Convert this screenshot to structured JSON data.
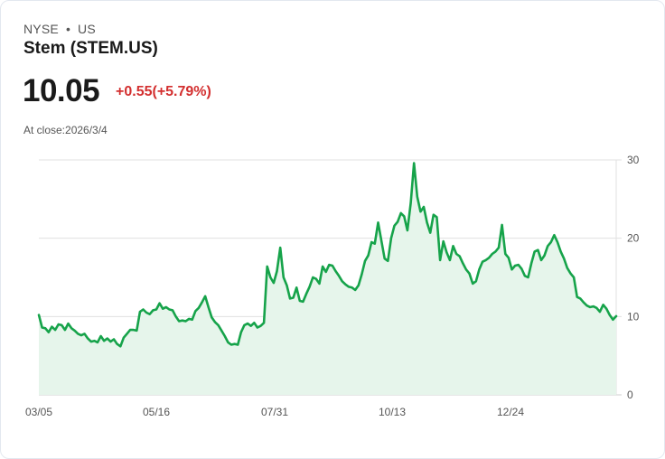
{
  "header": {
    "exchange": "NYSE",
    "separator": "•",
    "region": "US",
    "title": "Stem (STEM.US)",
    "price": "10.05",
    "change": "+0.55(+5.79%)",
    "close_label": "At close:2026/3/4"
  },
  "colors": {
    "line": "#16a34a",
    "fill": "#e6f5eb",
    "change": "#d32f2f",
    "grid": "#e0e0e0"
  },
  "chart_data": {
    "type": "area",
    "title": "Stem (STEM.US)",
    "xlabel": "",
    "ylabel": "",
    "ylim": [
      0,
      30
    ],
    "yticks": [
      0,
      10,
      20,
      30
    ],
    "xtick_labels": [
      "03/05",
      "05/16",
      "07/31",
      "10/13",
      "12/24"
    ],
    "grid": true,
    "y_axis_position": "right",
    "values": [
      10.2,
      8.6,
      8.5,
      8.0,
      8.7,
      8.3,
      9.0,
      8.9,
      8.3,
      9.1,
      8.5,
      8.2,
      7.8,
      7.6,
      7.8,
      7.2,
      6.8,
      6.9,
      6.7,
      7.5,
      6.9,
      7.2,
      6.8,
      7.1,
      6.5,
      6.2,
      7.3,
      7.8,
      8.3,
      8.3,
      8.2,
      10.6,
      10.9,
      10.5,
      10.3,
      10.8,
      10.9,
      11.7,
      11.0,
      11.2,
      10.9,
      10.8,
      10.0,
      9.4,
      9.5,
      9.4,
      9.7,
      9.6,
      10.7,
      11.1,
      11.8,
      12.6,
      11.2,
      9.9,
      9.3,
      8.9,
      8.2,
      7.5,
      6.7,
      6.4,
      6.5,
      6.4,
      8.0,
      8.9,
      9.1,
      8.8,
      9.2,
      8.6,
      8.8,
      9.2,
      16.4,
      15.0,
      14.3,
      15.8,
      18.8,
      15.0,
      14.0,
      12.3,
      12.4,
      13.7,
      12.0,
      11.9,
      12.9,
      13.8,
      15.0,
      14.8,
      14.2,
      16.4,
      15.7,
      16.6,
      16.5,
      15.8,
      15.2,
      14.5,
      14.1,
      13.8,
      13.7,
      13.4,
      14.0,
      15.4,
      17.1,
      17.8,
      19.5,
      19.3,
      22.0,
      19.7,
      17.4,
      17.1,
      20.0,
      21.6,
      22.1,
      23.2,
      22.8,
      21.0,
      24.5,
      29.6,
      25.3,
      23.4,
      24.0,
      22.0,
      20.7,
      23.0,
      22.7,
      17.2,
      19.6,
      18.2,
      17.2,
      19.0,
      18.0,
      17.7,
      16.8,
      16.0,
      15.5,
      14.2,
      14.5,
      16.0,
      17.0,
      17.2,
      17.5,
      18.0,
      18.3,
      18.8,
      21.7,
      18.0,
      17.5,
      16.0,
      16.5,
      16.6,
      16.1,
      15.2,
      15.0,
      16.8,
      18.3,
      18.5,
      17.2,
      17.8,
      19.0,
      19.5,
      20.4,
      19.5,
      18.3,
      17.4,
      16.2,
      15.5,
      15.0,
      12.5,
      12.3,
      11.8,
      11.4,
      11.2,
      11.3,
      11.1,
      10.6,
      11.5,
      11.0,
      10.2,
      9.6,
      10.05
    ],
    "x_start": "03/05",
    "x_end": "03/04"
  }
}
